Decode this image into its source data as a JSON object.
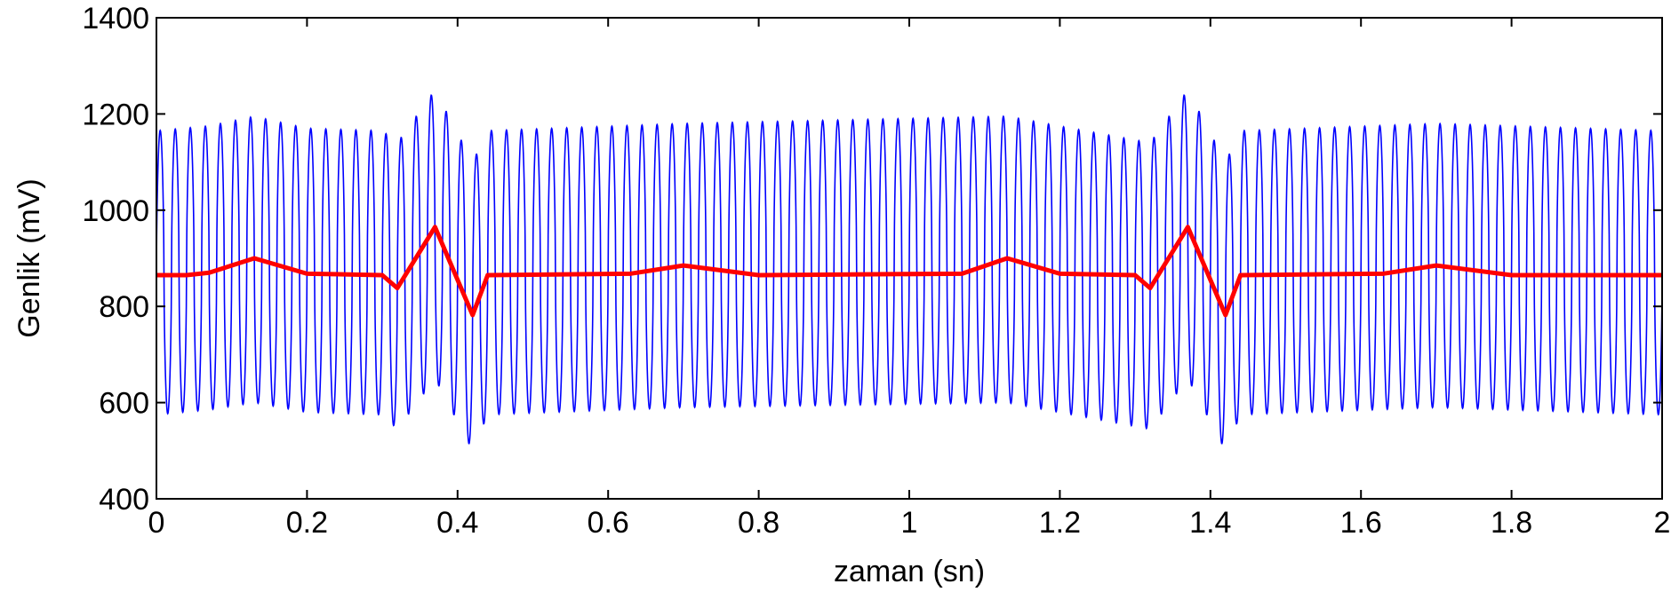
{
  "chart_data": {
    "type": "line",
    "title": "",
    "xlabel": "zaman (sn)",
    "ylabel": "Genlik (mV)",
    "xlim": [
      0,
      2
    ],
    "ylim": [
      400,
      1400
    ],
    "xticks": [
      0,
      0.2,
      0.4,
      0.6,
      0.8,
      1,
      1.2,
      1.4,
      1.6,
      1.8,
      2
    ],
    "xtick_labels": [
      "0",
      "0.2",
      "0.4",
      "0.6",
      "0.8",
      "1",
      "1.2",
      "1.4",
      "1.6",
      "1.8",
      "2"
    ],
    "yticks": [
      400,
      600,
      800,
      1000,
      1200,
      1400
    ],
    "ytick_labels": [
      "400",
      "600",
      "800",
      "1000",
      "1200",
      "1400"
    ],
    "grid": false,
    "legend": null,
    "series": [
      {
        "color": "#0000ff",
        "kind": "oscillating signal",
        "oscillation_frequency_hz": 50,
        "baseline_amplitude": {
          "min": 575,
          "max": 1165
        },
        "envelope": [
          {
            "x": 0.0,
            "min": 575,
            "max": 1165
          },
          {
            "x": 0.07,
            "min": 585,
            "max": 1175
          },
          {
            "x": 0.13,
            "min": 600,
            "max": 1195
          },
          {
            "x": 0.2,
            "min": 580,
            "max": 1170
          },
          {
            "x": 0.3,
            "min": 575,
            "max": 1165
          },
          {
            "x": 0.32,
            "min": 545,
            "max": 1140
          },
          {
            "x": 0.37,
            "min": 650,
            "max": 1250
          },
          {
            "x": 0.42,
            "min": 500,
            "max": 1100
          },
          {
            "x": 0.44,
            "min": 575,
            "max": 1165
          },
          {
            "x": 0.7,
            "min": 590,
            "max": 1180
          },
          {
            "x": 1.13,
            "min": 600,
            "max": 1195
          },
          {
            "x": 1.32,
            "min": 545,
            "max": 1140
          },
          {
            "x": 1.37,
            "min": 650,
            "max": 1250
          },
          {
            "x": 1.42,
            "min": 500,
            "max": 1100
          },
          {
            "x": 1.44,
            "min": 575,
            "max": 1165
          },
          {
            "x": 1.7,
            "min": 590,
            "max": 1180
          },
          {
            "x": 2.0,
            "min": 575,
            "max": 1165
          }
        ]
      },
      {
        "color": "#ff0000",
        "kind": "trend line",
        "x": [
          0,
          0.04,
          0.07,
          0.13,
          0.2,
          0.3,
          0.32,
          0.37,
          0.42,
          0.44,
          0.63,
          0.7,
          0.8,
          1.07,
          1.13,
          1.2,
          1.3,
          1.32,
          1.37,
          1.42,
          1.44,
          1.63,
          1.7,
          1.8,
          2.0
        ],
        "y": [
          865,
          865,
          870,
          900,
          868,
          865,
          838,
          965,
          782,
          865,
          868,
          885,
          865,
          868,
          900,
          868,
          865,
          838,
          965,
          782,
          865,
          868,
          885,
          865,
          865
        ]
      }
    ]
  }
}
